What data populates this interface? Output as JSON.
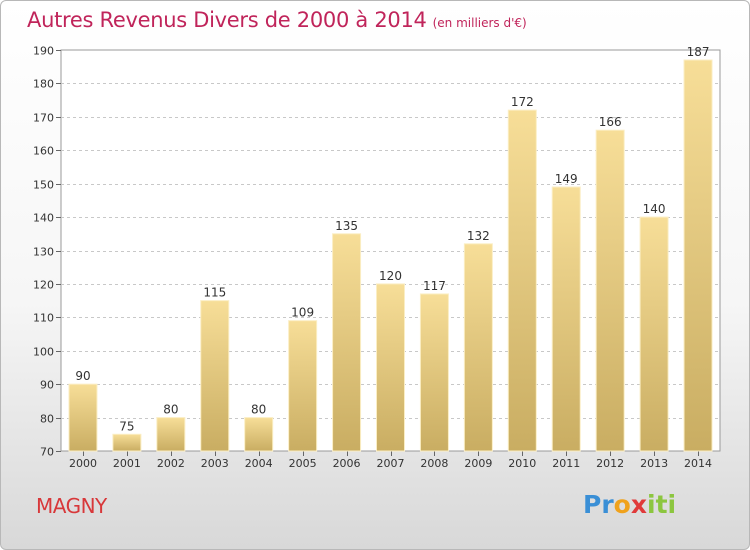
{
  "title": "Autres Revenus Divers de 2000 à 2014",
  "subtitle": "(en milliers d'€)",
  "commune": "MAGNY",
  "logo": {
    "letters": [
      "P",
      "r",
      "o",
      "x",
      "i",
      "t",
      "i"
    ],
    "colors": [
      "#3a8fd6",
      "#3a8fd6",
      "#f0a21c",
      "#e03a3a",
      "#8cc63f",
      "#8cc63f",
      "#8cc63f"
    ]
  },
  "chart_data": {
    "type": "bar",
    "categories": [
      "2000",
      "2001",
      "2002",
      "2003",
      "2004",
      "2005",
      "2006",
      "2007",
      "2008",
      "2009",
      "2010",
      "2011",
      "2012",
      "2013",
      "2014"
    ],
    "values": [
      90,
      75,
      80,
      115,
      80,
      109,
      135,
      120,
      117,
      132,
      172,
      149,
      166,
      140,
      187
    ],
    "ylim": [
      70,
      190
    ],
    "yticks": [
      70,
      80,
      90,
      100,
      110,
      120,
      130,
      140,
      150,
      160,
      170,
      180,
      190
    ],
    "grid": true,
    "data_labels": true,
    "bar_color": "#e8cd86"
  }
}
